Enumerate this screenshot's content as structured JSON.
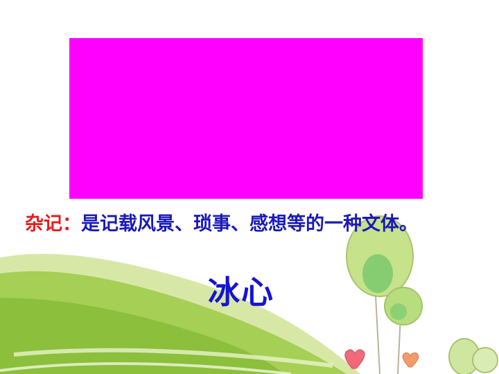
{
  "definition": {
    "term": "杂记：",
    "text": "是记载风景、琐事、感想等的一种文体。"
  },
  "author": "冰心",
  "colors": {
    "box": "#ff00ff",
    "term": "#e81c1c",
    "text": "#1a1ab8",
    "grass": "#9bc94a"
  }
}
